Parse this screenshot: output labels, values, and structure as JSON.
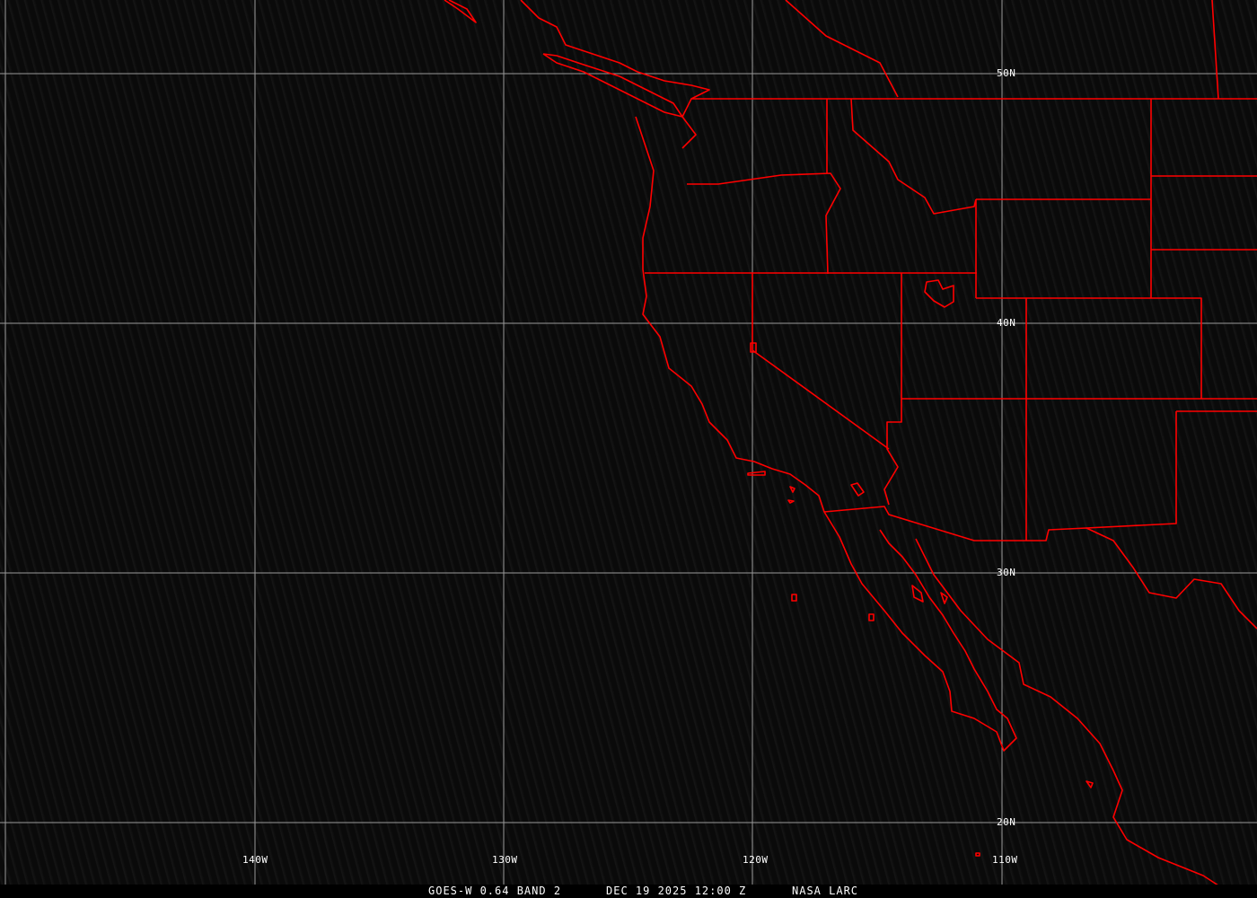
{
  "map": {
    "boundary_color": "#ff0000",
    "grid_color": "#9a9a9a",
    "longitude_labels": [
      "140W",
      "130W",
      "120W",
      "110W"
    ],
    "latitude_labels": [
      "50N",
      "40N",
      "30N",
      "20N"
    ]
  },
  "caption": {
    "satellite": "GOES-W 0.64 BAND 2",
    "datetime": "DEC 19 2025 12:00 Z",
    "source": "NASA LARC"
  }
}
